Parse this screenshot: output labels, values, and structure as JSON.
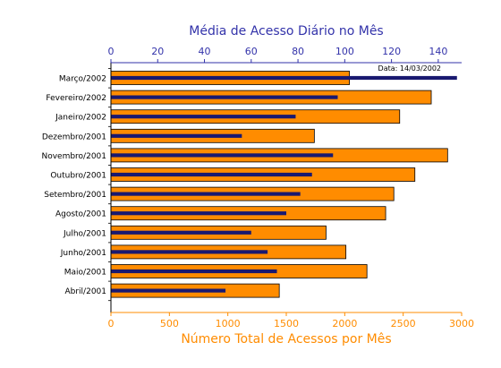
{
  "chart_data": {
    "type": "bar",
    "title": "Média de Acesso Diário no Mês",
    "xlabel": "Número Total de Acessos por Mês",
    "date_label": "Data: 14/03/2002",
    "categories": [
      "Março/2002",
      "Fevereiro/2002",
      "Janeiro/2002",
      "Dezembro/2001",
      "Novembro/2001",
      "Outubro/2001",
      "Setembro/2001",
      "Agosto/2001",
      "Julho/2001",
      "Junho/2001",
      "Maio/2001",
      "Abril/2001"
    ],
    "series": [
      {
        "axis": "bottom",
        "values": [
          2040,
          2740,
          2470,
          1740,
          2880,
          2600,
          2420,
          2350,
          1840,
          2010,
          2190,
          1440
        ]
      },
      {
        "axis": "top",
        "values": [
          148,
          97,
          79,
          56,
          95,
          86,
          81,
          75,
          60,
          67,
          71,
          49
        ]
      }
    ],
    "bottom_axis": {
      "range": [
        0,
        3000
      ],
      "ticks": [
        "0",
        "500",
        "1000",
        "1500",
        "2000",
        "2500",
        "3000"
      ]
    },
    "top_axis": {
      "range": [
        0,
        150
      ],
      "ticks": [
        "0",
        "20",
        "40",
        "60",
        "80",
        "100",
        "120",
        "140"
      ]
    },
    "grid": false,
    "colors": {
      "bar_total": "#ff8c00",
      "bar_daily": "#191970",
      "outline": "#000000",
      "bottom_axis": "#ff8c00",
      "top_axis": "#3333aa",
      "label_text": "#000000"
    }
  }
}
